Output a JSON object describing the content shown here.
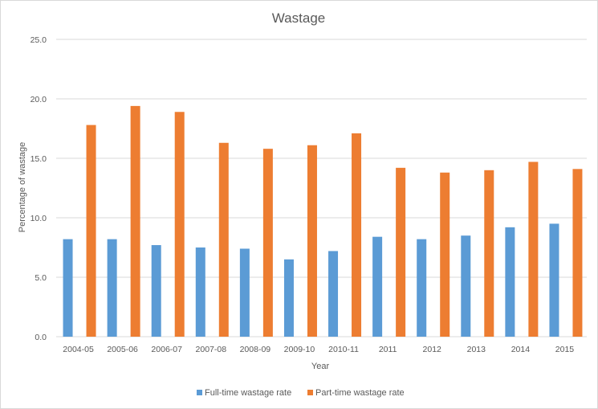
{
  "chart_data": {
    "type": "bar",
    "title": "Wastage",
    "xlabel": "Year",
    "ylabel": "Percentage of wastage",
    "ylim": [
      0,
      25
    ],
    "yticks": [
      "0.0",
      "5.0",
      "10.0",
      "15.0",
      "20.0",
      "25.0"
    ],
    "grid": true,
    "legend_position": "bottom",
    "categories": [
      "2004-05",
      "2005-06",
      "2006-07",
      "2007-08",
      "2008-09",
      "2009-10",
      "2010-11",
      "2011",
      "2012",
      "2013",
      "2014",
      "2015"
    ],
    "series": [
      {
        "name": "Full-time wastage rate",
        "color": "#5b9bd5",
        "values": [
          8.2,
          8.2,
          7.7,
          7.5,
          7.4,
          6.5,
          7.2,
          8.4,
          8.2,
          8.5,
          9.2,
          9.5
        ]
      },
      {
        "name": "Part-time wastage rate",
        "color": "#ed7d31",
        "values": [
          17.8,
          19.4,
          18.9,
          16.3,
          15.8,
          16.1,
          17.1,
          14.2,
          13.8,
          14.0,
          14.7,
          14.1
        ]
      }
    ]
  }
}
